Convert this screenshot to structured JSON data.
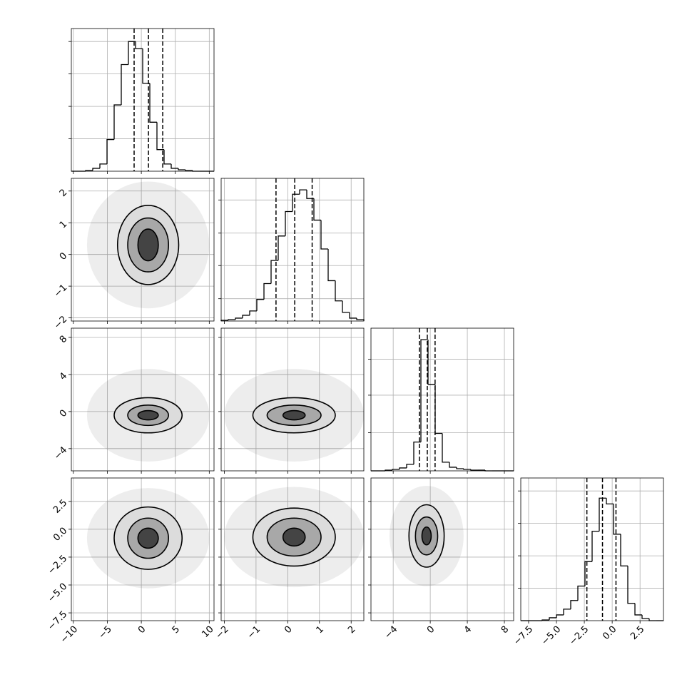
{
  "chart_data": {
    "type": "corner",
    "grid": true,
    "params": [
      {
        "lim": [
          -10.3,
          10.7
        ],
        "ticks": [
          {
            "value": -10,
            "label": "−10"
          },
          {
            "value": -5,
            "label": "−5"
          },
          0,
          5,
          10
        ],
        "bins": [
          -10.3,
          -9.25,
          -8.2,
          -7.15,
          -6.1,
          -5.05,
          -4,
          -2.95,
          -1.9,
          -0.85,
          0.2,
          1.25,
          2.3,
          3.35,
          4.4,
          5.45,
          6.5,
          7.55,
          8.6,
          9.65,
          10.7
        ],
        "values": [
          0,
          0,
          1,
          4,
          10,
          44,
          92,
          148,
          180,
          170,
          122,
          68,
          30,
          10,
          4,
          2,
          1,
          0,
          0,
          0
        ],
        "ylim": [
          0,
          198
        ],
        "yticks": [
          45,
          90,
          135,
          180
        ],
        "quantiles": [
          -1.06,
          1.05,
          3.15
        ]
      },
      {
        "lim": [
          -2.1,
          2.4
        ],
        "ticks": [
          {
            "value": -2,
            "label": "−2"
          },
          {
            "value": -1,
            "label": "−1"
          },
          0,
          1,
          2
        ],
        "bins": [
          -2.1,
          -1.875,
          -1.65,
          -1.425,
          -1.2,
          -0.975,
          -0.75,
          -0.525,
          -0.3,
          -0.075,
          0.15,
          0.375,
          0.6,
          0.825,
          1.05,
          1.275,
          1.5,
          1.725,
          1.95,
          2.175,
          2.4
        ],
        "values": [
          1,
          2,
          4,
          8,
          14,
          30,
          52,
          84,
          118,
          152,
          176,
          182,
          170,
          140,
          100,
          56,
          28,
          12,
          4,
          2
        ],
        "ylim": [
          0,
          198
        ],
        "yticks": [
          31,
          77,
          122,
          168
        ],
        "quantiles": [
          -0.37,
          0.22,
          0.77
        ]
      },
      {
        "lim": [
          -6.4,
          9.0
        ],
        "ticks": [
          {
            "value": -4,
            "label": "−4"
          },
          0,
          4,
          8
        ],
        "bins": [
          -6.4,
          -5.63,
          -4.86,
          -4.09,
          -3.32,
          -2.55,
          -1.78,
          -1.01,
          -0.24,
          0.53,
          1.3,
          2.07,
          2.84,
          3.61,
          4.38,
          5.15,
          5.92,
          6.69,
          7.46,
          8.23,
          9.0
        ],
        "values": [
          0,
          0,
          1,
          2,
          4,
          9,
          40,
          182,
          120,
          52,
          12,
          5,
          3,
          2,
          1,
          1,
          0,
          0,
          0,
          0
        ],
        "ylim": [
          0,
          198
        ],
        "yticks": [
          53,
          105,
          155
        ],
        "quantiles": [
          -1.17,
          -0.32,
          0.52
        ]
      },
      {
        "lim": [
          -8.2,
          4.6
        ],
        "ticks": [
          {
            "value": -7.5,
            "label": "−7.5"
          },
          {
            "value": -5,
            "label": "−5.0"
          },
          {
            "value": -2.5,
            "label": "−2.5"
          },
          {
            "value": 0,
            "label": "0.0"
          },
          2.5
        ],
        "bins": [
          -8.2,
          -7.56,
          -6.92,
          -6.28,
          -5.64,
          -5,
          -4.36,
          -3.72,
          -3.08,
          -2.44,
          -1.8,
          -1.16,
          -0.52,
          0.12,
          0.76,
          1.4,
          2.04,
          2.68,
          3.32,
          3.96,
          4.6
        ],
        "values": [
          0,
          0,
          0,
          1,
          4,
          8,
          16,
          28,
          48,
          82,
          124,
          170,
          162,
          120,
          76,
          24,
          8,
          3,
          0,
          0
        ],
        "ylim": [
          0,
          198
        ],
        "yticks": [
          45,
          90,
          135,
          180
        ],
        "quantiles": [
          -2.27,
          -0.87,
          0.34
        ]
      }
    ],
    "pairs": [
      {
        "x_param": 0,
        "y_param": 1,
        "center": [
          1,
          0.3
        ],
        "levels": [
          [
            9,
            2
          ],
          [
            4.5,
            1.25
          ],
          [
            3,
            0.85
          ],
          [
            1.5,
            0.5
          ]
        ]
      },
      {
        "x_param": 0,
        "y_param": 2,
        "center": [
          1,
          -0.4
        ],
        "levels": [
          [
            9,
            5
          ],
          [
            5,
            1.9
          ],
          [
            3,
            1.1
          ],
          [
            1.5,
            0.5
          ]
        ]
      },
      {
        "x_param": 1,
        "y_param": 2,
        "center": [
          0.2,
          -0.4
        ],
        "levels": [
          [
            2.2,
            5
          ],
          [
            1.3,
            1.9
          ],
          [
            0.85,
            1.1
          ],
          [
            0.35,
            0.5
          ]
        ]
      },
      {
        "x_param": 0,
        "y_param": 3,
        "center": [
          1,
          -0.8
        ],
        "levels": [
          [
            9,
            4.5
          ],
          [
            5,
            2.8
          ],
          [
            3,
            1.8
          ],
          [
            1.5,
            0.9
          ]
        ]
      },
      {
        "x_param": 1,
        "y_param": 3,
        "center": [
          0.2,
          -0.7
        ],
        "levels": [
          [
            2.2,
            4.5
          ],
          [
            1.3,
            2.6
          ],
          [
            0.85,
            1.7
          ],
          [
            0.35,
            0.8
          ]
        ]
      },
      {
        "x_param": 2,
        "y_param": 3,
        "center": [
          -0.4,
          -0.6
        ],
        "levels": [
          [
            4,
            4.5
          ],
          [
            1.9,
            2.8
          ],
          [
            1.2,
            1.7
          ],
          [
            0.5,
            0.8
          ]
        ]
      }
    ]
  }
}
